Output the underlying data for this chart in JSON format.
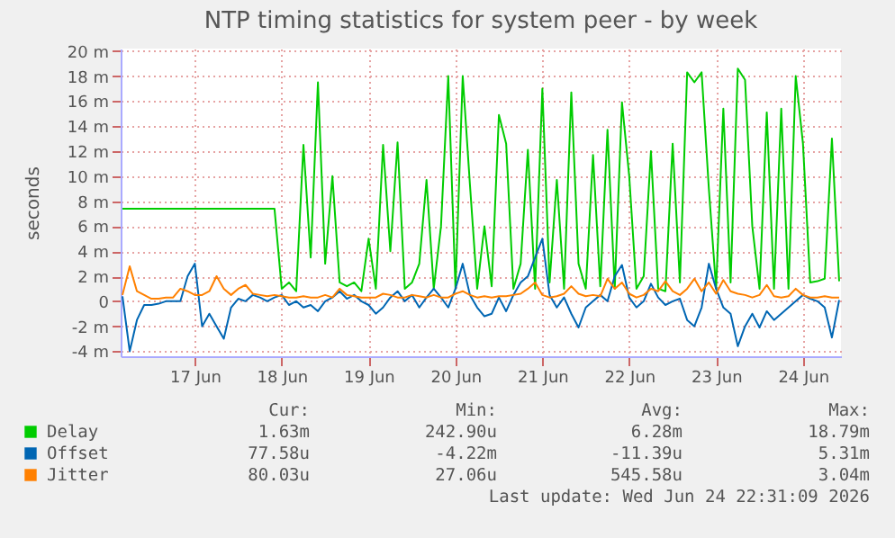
{
  "chart_data": {
    "type": "line",
    "title": "NTP timing statistics for system peer - by week",
    "ylabel": "seconds",
    "x": [
      "2026-06-16T16:00",
      "2026-06-16T18:00",
      "2026-06-16T20:00",
      "2026-06-16T22:00",
      "2026-06-17T00:00",
      "2026-06-17T02:00",
      "2026-06-17T04:00",
      "2026-06-17T06:00",
      "2026-06-17T08:00",
      "2026-06-17T10:00",
      "2026-06-17T12:00",
      "2026-06-17T14:00",
      "2026-06-17T16:00",
      "2026-06-17T18:00",
      "2026-06-17T20:00",
      "2026-06-17T22:00",
      "2026-06-18T00:00",
      "2026-06-18T02:00",
      "2026-06-18T04:00",
      "2026-06-18T06:00",
      "2026-06-18T08:00",
      "2026-06-18T10:00",
      "2026-06-18T12:00",
      "2026-06-18T14:00",
      "2026-06-18T16:00",
      "2026-06-18T18:00",
      "2026-06-18T20:00",
      "2026-06-18T22:00",
      "2026-06-19T00:00",
      "2026-06-19T02:00",
      "2026-06-19T04:00",
      "2026-06-19T06:00",
      "2026-06-19T08:00",
      "2026-06-19T10:00",
      "2026-06-19T12:00",
      "2026-06-19T14:00",
      "2026-06-19T16:00",
      "2026-06-19T18:00",
      "2026-06-19T20:00",
      "2026-06-19T22:00",
      "2026-06-20T00:00",
      "2026-06-20T02:00",
      "2026-06-20T04:00",
      "2026-06-20T06:00",
      "2026-06-20T08:00",
      "2026-06-20T10:00",
      "2026-06-20T12:00",
      "2026-06-20T14:00",
      "2026-06-20T16:00",
      "2026-06-20T18:00",
      "2026-06-20T20:00",
      "2026-06-20T22:00",
      "2026-06-21T00:00",
      "2026-06-21T02:00",
      "2026-06-21T04:00",
      "2026-06-21T06:00",
      "2026-06-21T08:00",
      "2026-06-21T10:00",
      "2026-06-21T12:00",
      "2026-06-21T14:00",
      "2026-06-21T16:00",
      "2026-06-21T18:00",
      "2026-06-21T20:00",
      "2026-06-21T22:00",
      "2026-06-22T00:00",
      "2026-06-22T02:00",
      "2026-06-22T04:00",
      "2026-06-22T06:00",
      "2026-06-22T08:00",
      "2026-06-22T10:00",
      "2026-06-22T12:00",
      "2026-06-22T14:00",
      "2026-06-22T16:00",
      "2026-06-22T18:00",
      "2026-06-22T20:00",
      "2026-06-22T22:00",
      "2026-06-23T00:00",
      "2026-06-23T02:00",
      "2026-06-23T04:00",
      "2026-06-23T06:00",
      "2026-06-23T08:00",
      "2026-06-23T10:00",
      "2026-06-23T12:00",
      "2026-06-23T14:00",
      "2026-06-23T16:00",
      "2026-06-23T18:00",
      "2026-06-23T20:00",
      "2026-06-23T22:00",
      "2026-06-24T00:00",
      "2026-06-24T02:00",
      "2026-06-24T04:00",
      "2026-06-24T06:00",
      "2026-06-24T08:00",
      "2026-06-24T10:00",
      "2026-06-24T12:00",
      "2026-06-24T14:00",
      "2026-06-24T16:00",
      "2026-06-24T18:00",
      "2026-06-24T20:00",
      "2026-06-24T22:00"
    ],
    "series": [
      {
        "name": "Delay",
        "color": "#00cc00",
        "values": [
          7.4,
          7.4,
          7.4,
          7.4,
          7.4,
          7.4,
          7.4,
          7.4,
          7.4,
          7.4,
          7.4,
          7.4,
          7.4,
          7.4,
          7.4,
          7.4,
          7.4,
          7.4,
          7.4,
          7.4,
          7.4,
          7.4,
          1.0,
          1.5,
          0.8,
          12.5,
          3.5,
          17.5,
          3.0,
          10.0,
          1.5,
          1.2,
          1.5,
          0.8,
          5.0,
          1.0,
          12.5,
          4.0,
          12.7,
          1.0,
          1.5,
          3.0,
          9.7,
          1.0,
          6.0,
          18.0,
          1.0,
          18.0,
          9.3,
          1.0,
          6.0,
          1.2,
          14.9,
          12.6,
          1.0,
          3.0,
          12.1,
          1.0,
          17.0,
          1.5,
          9.7,
          1.0,
          16.7,
          3.0,
          1.0,
          11.7,
          1.2,
          13.7,
          1.0,
          15.9,
          10.0,
          1.0,
          2.0,
          12.0,
          1.0,
          0.8,
          12.6,
          1.5,
          18.3,
          17.5,
          18.3,
          9.0,
          1.0,
          15.4,
          1.5,
          18.6,
          17.7,
          6.0,
          1.0,
          15.1,
          1.0,
          15.4,
          1.0,
          18.0,
          12.6,
          1.5,
          1.6,
          1.8,
          13.0,
          1.6
        ]
      },
      {
        "name": "Offset",
        "color": "#0066b3",
        "values": [
          0.4,
          -4.0,
          -1.5,
          -0.3,
          -0.3,
          -0.2,
          0.0,
          0.0,
          0.0,
          2.0,
          3.0,
          -2.0,
          -1.0,
          -2.0,
          -3.0,
          -0.5,
          0.2,
          0.0,
          0.5,
          0.3,
          0.0,
          0.3,
          0.5,
          -0.3,
          0.0,
          -0.5,
          -0.3,
          -0.8,
          0.0,
          0.3,
          0.8,
          0.2,
          0.5,
          0.0,
          -0.3,
          -1.0,
          -0.5,
          0.3,
          0.8,
          0.0,
          0.5,
          -0.5,
          0.3,
          1.0,
          0.3,
          -0.5,
          1.0,
          3.0,
          0.5,
          -0.5,
          -1.2,
          -1.0,
          0.3,
          -0.8,
          0.5,
          1.5,
          2.0,
          3.5,
          5.0,
          0.5,
          -0.5,
          0.3,
          -1.0,
          -2.1,
          -0.5,
          0.0,
          0.5,
          0.0,
          2.0,
          2.9,
          0.3,
          -0.5,
          0.0,
          1.4,
          0.3,
          -0.3,
          0.0,
          0.2,
          -1.5,
          -2.0,
          -0.5,
          3.0,
          1.0,
          -0.5,
          -1.0,
          -3.6,
          -2.0,
          -1.0,
          -2.1,
          -0.8,
          -1.5,
          -1.0,
          -0.5,
          0.0,
          0.5,
          0.2,
          0.0,
          -0.5,
          -2.9,
          0.1
        ]
      },
      {
        "name": "Jitter",
        "color": "#ff8000",
        "values": [
          0.5,
          2.8,
          0.8,
          0.5,
          0.2,
          0.2,
          0.3,
          0.3,
          1.0,
          0.8,
          0.5,
          0.5,
          0.8,
          2.0,
          1.0,
          0.5,
          1.0,
          1.3,
          0.6,
          0.5,
          0.4,
          0.5,
          0.4,
          0.3,
          0.3,
          0.4,
          0.3,
          0.3,
          0.5,
          0.3,
          1.0,
          0.5,
          0.4,
          0.3,
          0.3,
          0.3,
          0.6,
          0.5,
          0.3,
          0.3,
          0.5,
          0.4,
          0.3,
          0.5,
          0.3,
          0.3,
          0.6,
          0.8,
          0.5,
          0.3,
          0.4,
          0.3,
          0.4,
          0.4,
          0.5,
          0.6,
          1.0,
          1.5,
          0.5,
          0.3,
          0.4,
          0.6,
          1.2,
          0.6,
          0.4,
          0.5,
          0.4,
          1.8,
          1.0,
          1.5,
          0.6,
          0.3,
          0.5,
          1.0,
          0.8,
          1.6,
          0.8,
          0.5,
          1.0,
          1.8,
          0.8,
          1.5,
          0.6,
          1.7,
          0.8,
          0.6,
          0.5,
          0.3,
          0.5,
          1.3,
          0.4,
          0.3,
          0.4,
          1.0,
          0.5,
          0.3,
          0.3,
          0.4,
          0.3,
          0.3
        ]
      }
    ],
    "xlim": [
      "2026-06-16T15:30",
      "2026-06-24T22:30"
    ],
    "xticks": [
      {
        "value": "2026-06-17T12:00",
        "label": "17 Jun"
      },
      {
        "value": "2026-06-18T12:00",
        "label": "18 Jun"
      },
      {
        "value": "2026-06-19T12:00",
        "label": "19 Jun"
      },
      {
        "value": "2026-06-20T12:00",
        "label": "20 Jun"
      },
      {
        "value": "2026-06-21T12:00",
        "label": "21 Jun"
      },
      {
        "value": "2026-06-22T12:00",
        "label": "22 Jun"
      },
      {
        "value": "2026-06-23T12:00",
        "label": "23 Jun"
      },
      {
        "value": "2026-06-24T12:00",
        "label": "24 Jun"
      }
    ],
    "ylim": [
      -4.4,
      20.2
    ],
    "yticks": [
      {
        "value": -4,
        "label": "-4 m"
      },
      {
        "value": -2,
        "label": "-2 m"
      },
      0,
      {
        "value": 2,
        "label": "2 m"
      },
      {
        "value": 4,
        "label": "4 m"
      },
      {
        "value": 6,
        "label": "6 m"
      },
      {
        "value": 8,
        "label": "8 m"
      },
      {
        "value": 10,
        "label": "10 m"
      },
      {
        "value": 12,
        "label": "12 m"
      },
      {
        "value": 14,
        "label": "14 m"
      },
      {
        "value": 16,
        "label": "16 m"
      },
      {
        "value": 18,
        "label": "18 m"
      },
      {
        "value": 20,
        "label": "20 m"
      }
    ],
    "grid": true,
    "legend": "bottom",
    "annotations": [
      "Cur:",
      "Min:",
      "Avg:",
      "Max:",
      "1.63m",
      "242.90u",
      "6.28m",
      "18.79m",
      "77.58u",
      "-4.22m",
      "-11.39u",
      "5.31m",
      "80.03u",
      "27.06u",
      "545.58u",
      "3.04m",
      "Last update: Wed Jun 24 22:31:09 2026"
    ]
  }
}
